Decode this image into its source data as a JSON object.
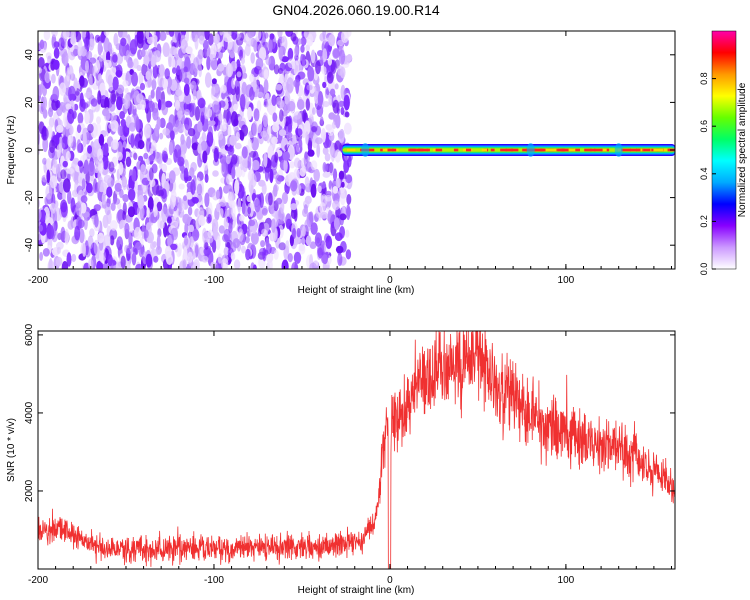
{
  "title": "GN04.2026.060.19.00.R14",
  "chart_data": [
    {
      "type": "heatmap",
      "xlabel": "Height of straight line (km)",
      "ylabel": "Frequency (Hz)",
      "xlim": [
        -200,
        162
      ],
      "ylim": [
        -50,
        50
      ],
      "xticks": [
        -200,
        -100,
        0,
        100
      ],
      "yticks": [
        -40,
        -20,
        0,
        20,
        40
      ],
      "colorbar": {
        "label": "Normalized spectral amplitude",
        "range": [
          0,
          1
        ],
        "ticks": [
          "0.0",
          "0.2",
          "0.4",
          "0.6",
          "0.8"
        ],
        "colors": [
          "#ffffff",
          "#cc99ff",
          "#8800ff",
          "#0000ff",
          "#00aaff",
          "#00ffff",
          "#00ff66",
          "#66ff00",
          "#ffff00",
          "#ff9900",
          "#ff0000",
          "#ff00aa"
        ]
      },
      "noise_region_x": [
        -200,
        -25
      ],
      "carrier_region_x": [
        -27,
        162
      ],
      "carrier_frequency": 0,
      "grid": false
    },
    {
      "type": "line",
      "xlabel": "Height of straight line (km)",
      "ylabel": "SNR (10 * v/v)",
      "xlim": [
        -200,
        162
      ],
      "ylim": [
        0,
        6100
      ],
      "xticks": [
        -200,
        -100,
        0,
        100
      ],
      "yticks": [
        2000,
        4000,
        6000
      ],
      "series": [
        {
          "color": "#f03030",
          "x": [
            -200,
            -185,
            -170,
            -150,
            -120,
            -90,
            -60,
            -40,
            -25,
            -15,
            -8,
            -4,
            -2,
            0,
            5,
            15,
            30,
            45,
            50,
            55,
            70,
            90,
            110,
            130,
            145,
            162
          ],
          "y": [
            900,
            1050,
            600,
            480,
            500,
            520,
            560,
            600,
            650,
            750,
            1300,
            3000,
            3600,
            3700,
            3800,
            4600,
            5100,
            5400,
            5600,
            5000,
            4300,
            3700,
            3300,
            3000,
            2700,
            2000
          ]
        }
      ],
      "grid": false
    }
  ]
}
